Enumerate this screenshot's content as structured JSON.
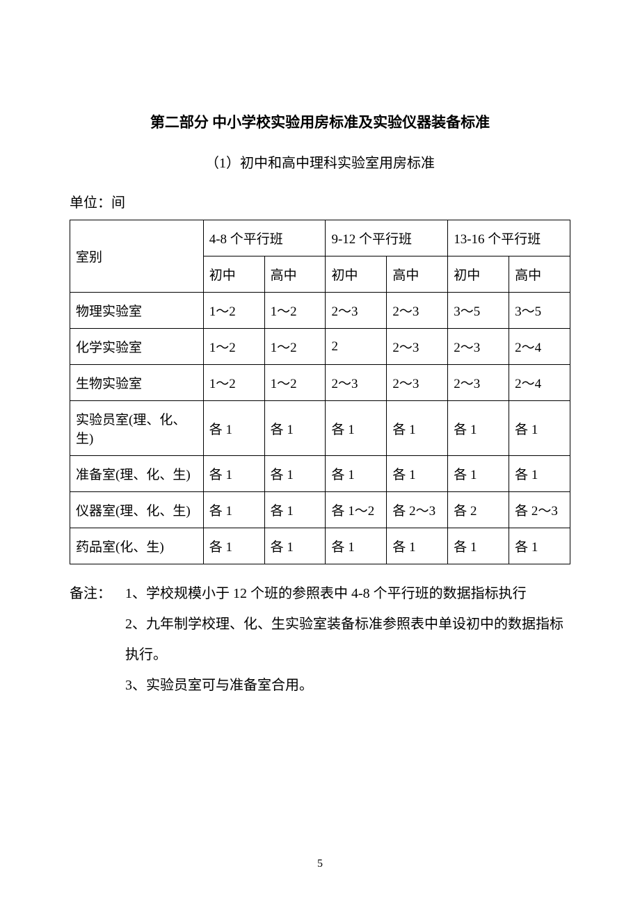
{
  "title": "第二部分 中小学校实验用房标准及实验仪器装备标准",
  "subtitle": "（1）初中和高中理科实验室用房标准",
  "unit_label": "单位：间",
  "table": {
    "header_room": "室别",
    "header_groups": [
      "4-8 个平行班",
      "9-12 个平行班",
      "13-16 个平行班"
    ],
    "header_subs": [
      "初中",
      "高中",
      "初中",
      "高中",
      "初中",
      "高中"
    ],
    "rows": [
      {
        "label": "物理实验室",
        "cells": [
          "1～2",
          "1～2",
          "2～3",
          "2～3",
          "3～5",
          "3～5"
        ]
      },
      {
        "label": "化学实验室",
        "cells": [
          "1～2",
          "1～2",
          "2",
          "2～3",
          "2～3",
          "2～4"
        ]
      },
      {
        "label": "生物实验室",
        "cells": [
          "1～2",
          "1～2",
          "2～3",
          "2～3",
          "2～3",
          "2～4"
        ]
      },
      {
        "label": "实验员室(理、化、生)",
        "cells": [
          "各 1",
          "各 1",
          "各 1",
          "各 1",
          "各 1",
          "各 1"
        ]
      },
      {
        "label": "准备室(理、化、生)",
        "cells": [
          "各 1",
          "各 1",
          "各 1",
          "各 1",
          "各 1",
          "各 1"
        ]
      },
      {
        "label": "仪器室(理、化、生)",
        "cells": [
          "各 1",
          "各 1",
          "各 1～2",
          "各 2～3",
          "各 2",
          "各 2～3"
        ]
      },
      {
        "label": "药品室(化、生)",
        "cells": [
          "各 1",
          "各 1",
          "各 1",
          "各 1",
          "各 1",
          "各 1"
        ]
      }
    ]
  },
  "notes": {
    "label": "备注：",
    "items": [
      "1、学校规模小于 12 个班的参照表中 4-8 个平行班的数据指标执行",
      "2、九年制学校理、化、生实验室装备标准参照表中单设初中的数据指标执行。",
      "3、实验员室可与准备室合用。"
    ]
  },
  "page_number": "5"
}
